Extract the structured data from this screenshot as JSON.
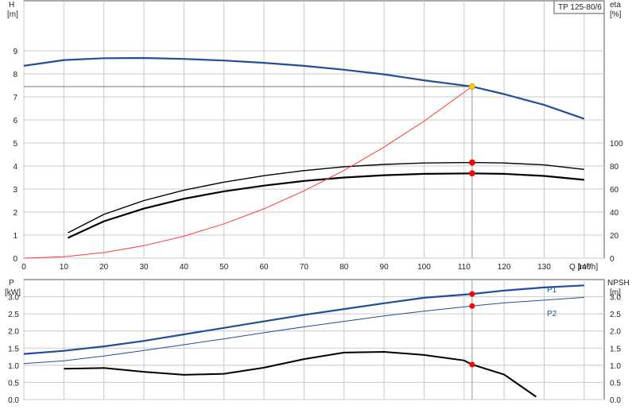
{
  "chart_data": [
    {
      "type": "line",
      "id": "head-chart",
      "model_label": "TP 125-80/6",
      "left_axis_label": "H",
      "left_axis_unit": "[m]",
      "right_axis_label": "eta",
      "right_axis_unit": "[%]",
      "x_axis_label": "Q [m³/h]",
      "xlim": [
        0,
        145
      ],
      "ylim": [
        0,
        10
      ],
      "right_ylim": [
        0,
        100
      ],
      "x_ticks": [
        0,
        10,
        20,
        30,
        40,
        50,
        60,
        70,
        80,
        90,
        100,
        110,
        120,
        130,
        140
      ],
      "y_ticks": [
        0,
        1,
        2,
        3,
        4,
        5,
        6,
        7,
        8,
        9
      ],
      "right_ticks": [
        0,
        20,
        40,
        60,
        80,
        100
      ],
      "grid": true,
      "duty_point": {
        "q": 112,
        "h": 7.45
      },
      "series": [
        {
          "key": "H",
          "color": "#1f4e9c",
          "width": 2.2,
          "x": [
            0,
            10,
            20,
            30,
            40,
            50,
            60,
            70,
            80,
            90,
            100,
            112,
            120,
            130,
            140
          ],
          "y": [
            8.35,
            8.6,
            8.68,
            8.69,
            8.65,
            8.58,
            8.48,
            8.35,
            8.18,
            7.98,
            7.72,
            7.45,
            7.12,
            6.65,
            6.05
          ]
        },
        {
          "key": "eta-upper",
          "color": "#000000",
          "width": 1.4,
          "x": [
            11,
            20,
            30,
            40,
            50,
            60,
            70,
            80,
            90,
            100,
            112,
            120,
            130,
            140
          ],
          "y": [
            1.1,
            1.9,
            2.5,
            2.95,
            3.3,
            3.58,
            3.8,
            3.97,
            4.07,
            4.13,
            4.15,
            4.13,
            4.05,
            3.85
          ]
        },
        {
          "key": "eta-lower",
          "color": "#000000",
          "width": 2.2,
          "x": [
            11,
            20,
            30,
            40,
            50,
            60,
            70,
            80,
            90,
            100,
            112,
            120,
            130,
            140
          ],
          "y": [
            0.88,
            1.6,
            2.15,
            2.58,
            2.9,
            3.15,
            3.35,
            3.5,
            3.6,
            3.66,
            3.68,
            3.66,
            3.57,
            3.4
          ]
        },
        {
          "key": "system",
          "color": "#ff3b30",
          "width": 1,
          "x": [
            0,
            10,
            20,
            30,
            40,
            50,
            60,
            70,
            80,
            90,
            100,
            112
          ],
          "y": [
            0,
            0.06,
            0.24,
            0.54,
            0.95,
            1.49,
            2.14,
            2.92,
            3.81,
            4.82,
            5.95,
            7.45
          ]
        }
      ],
      "markers": [
        {
          "q": 112,
          "v": 7.45,
          "color": "#ffcc00"
        },
        {
          "q": 112,
          "v": 4.15,
          "color": "#ff0000"
        },
        {
          "q": 112,
          "v": 3.68,
          "color": "#ff0000"
        }
      ]
    },
    {
      "type": "line",
      "id": "power-chart",
      "left_axis_label": "P",
      "left_axis_unit": "[kW]",
      "right_axis_label": "NPSH",
      "right_axis_unit": "[m]",
      "xlim": [
        0,
        145
      ],
      "ylim": [
        0,
        3.5
      ],
      "y_ticks": [
        "0.0",
        "0.5",
        "1.0",
        "1.5",
        "2.0",
        "2.5",
        "3.0"
      ],
      "grid": true,
      "series": [
        {
          "key": "P1",
          "name": "P1",
          "color": "#1f4e9c",
          "width": 2.2,
          "x": [
            0,
            10,
            20,
            30,
            40,
            50,
            60,
            70,
            80,
            90,
            100,
            112,
            120,
            130,
            140
          ],
          "y": [
            1.33,
            1.42,
            1.55,
            1.71,
            1.9,
            2.09,
            2.28,
            2.47,
            2.64,
            2.81,
            2.97,
            3.08,
            3.18,
            3.27,
            3.33
          ]
        },
        {
          "key": "P2",
          "name": "P2",
          "color": "#1f4e9c",
          "width": 1,
          "x": [
            0,
            10,
            20,
            30,
            40,
            50,
            60,
            70,
            80,
            90,
            100,
            112,
            120,
            130,
            140
          ],
          "y": [
            1.05,
            1.13,
            1.27,
            1.43,
            1.6,
            1.77,
            1.95,
            2.12,
            2.28,
            2.44,
            2.58,
            2.73,
            2.82,
            2.9,
            2.98
          ]
        },
        {
          "key": "NPSH",
          "color": "#000000",
          "width": 2,
          "x": [
            10,
            20,
            30,
            40,
            50,
            60,
            70,
            80,
            90,
            100,
            110,
            112,
            120,
            128
          ],
          "y": [
            0.9,
            0.92,
            0.81,
            0.72,
            0.75,
            0.93,
            1.18,
            1.37,
            1.39,
            1.3,
            1.14,
            1.02,
            0.73,
            0.08
          ]
        }
      ],
      "markers": [
        {
          "q": 112,
          "v": 3.08,
          "color": "#ff0000"
        },
        {
          "q": 112,
          "v": 2.73,
          "color": "#ff0000"
        },
        {
          "q": 112,
          "v": 1.02,
          "color": "#ff0000"
        }
      ]
    }
  ]
}
